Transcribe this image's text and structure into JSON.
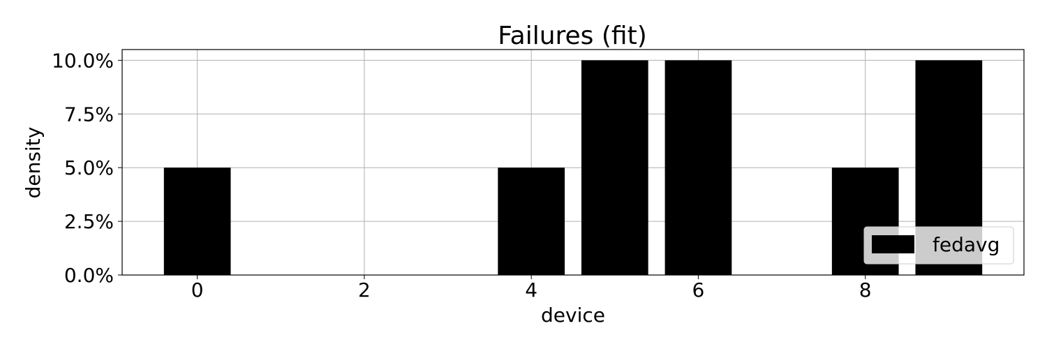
{
  "chart_data": {
    "type": "bar",
    "title": "Failures (fit)",
    "xlabel": "device",
    "ylabel": "density",
    "categories": [
      0,
      1,
      2,
      3,
      4,
      5,
      6,
      7,
      8,
      9
    ],
    "series": [
      {
        "name": "fedavg",
        "values": [
          0.05,
          0.0,
          0.0,
          0.0,
          0.05,
          0.1,
          0.1,
          0.0,
          0.05,
          0.1
        ]
      }
    ],
    "xlim": [
      -0.9,
      9.9
    ],
    "ylim": [
      0.0,
      0.105
    ],
    "xticks": [
      0,
      2,
      4,
      6,
      8
    ],
    "xtick_labels": [
      "0",
      "2",
      "4",
      "6",
      "8"
    ],
    "yticks": [
      0.0,
      0.025,
      0.05,
      0.075,
      0.1
    ],
    "ytick_labels": [
      "0.0%",
      "2.5%",
      "5.0%",
      "7.5%",
      "10.0%"
    ],
    "grid": true,
    "legend_position": "lower right",
    "colors": {
      "bar": "#000000",
      "grid": "#b0b0b0",
      "axis": "#000000",
      "background": "#ffffff"
    }
  }
}
